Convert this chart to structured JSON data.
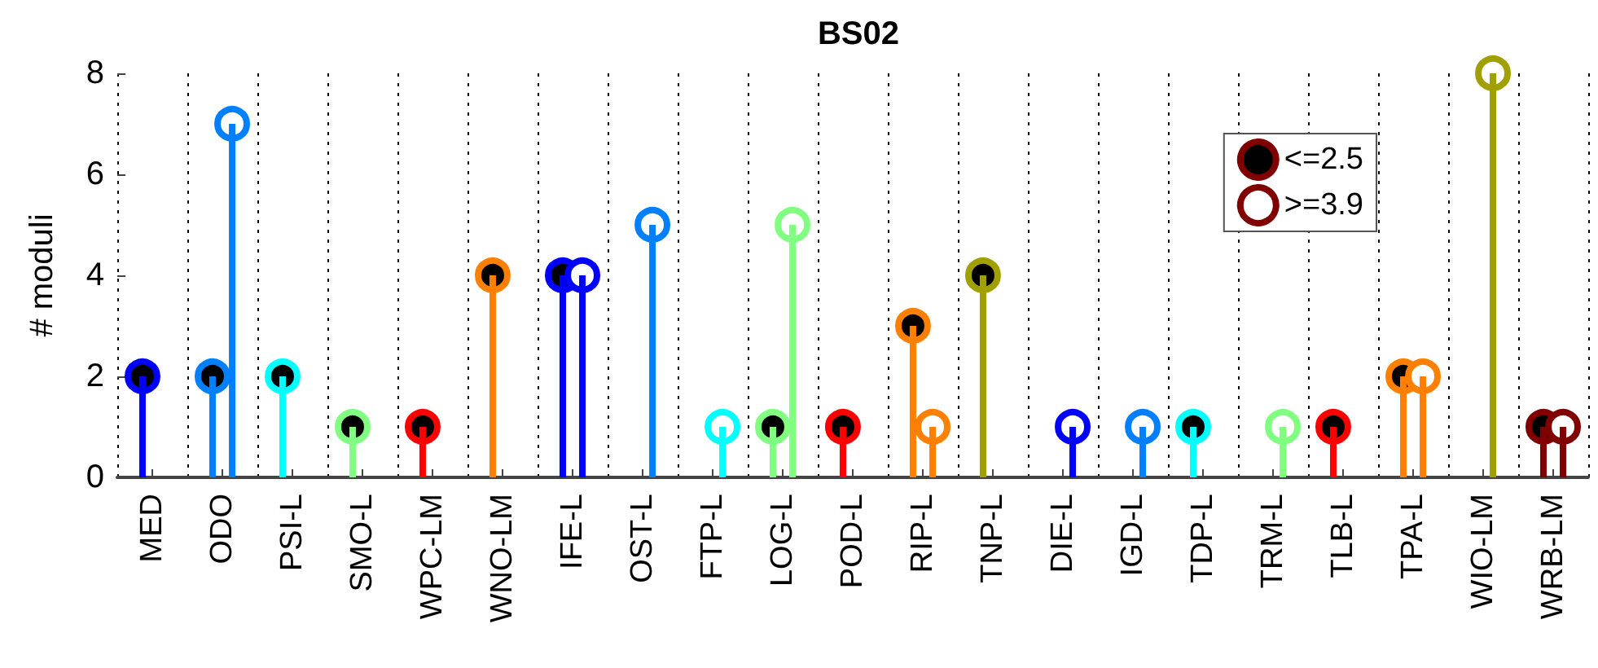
{
  "chart_data": {
    "type": "lollipop",
    "title": "BS02",
    "ylabel": "# moduli",
    "categories": [
      "MED",
      "ODO",
      "PSI-L",
      "SMO-L",
      "WPC-LM",
      "WNO-LM",
      "IFE-L",
      "OST-L",
      "FTP-L",
      "LOG-L",
      "POD-L",
      "RIP-L",
      "TNP-L",
      "DIE-L",
      "IGD-L",
      "TDP-L",
      "TRM-L",
      "TLB-L",
      "TPA-L",
      "WIO-LM",
      "WRB-LM"
    ],
    "series": [
      {
        "name": "<=2.5",
        "color": "#800000",
        "values": [
          2,
          2,
          2,
          1,
          1,
          4,
          4,
          null,
          null,
          1,
          1,
          3,
          4,
          null,
          null,
          1,
          null,
          1,
          2,
          null,
          1
        ],
        "colors": [
          "#0000ff",
          "#0080ff",
          "#00ffff",
          "#80ff80",
          "#ff0000",
          "#ff8000",
          "#0000ff",
          null,
          null,
          "#80ff80",
          "#ff0000",
          "#ff8000",
          "#a0a000",
          null,
          null,
          "#00ffff",
          null,
          "#ff0000",
          "#ff8000",
          null,
          "#800000"
        ]
      },
      {
        "name": ">=3.9",
        "color": "#800000",
        "values": [
          null,
          7,
          null,
          null,
          null,
          null,
          4,
          5,
          1,
          5,
          null,
          1,
          null,
          1,
          1,
          null,
          1,
          null,
          2,
          8,
          1
        ],
        "colors": [
          null,
          "#0080ff",
          null,
          null,
          null,
          null,
          "#0000ff",
          "#0080ff",
          "#00ffff",
          "#80ff80",
          null,
          "#ff8000",
          null,
          "#0000ff",
          "#0080ff",
          null,
          "#80ff80",
          null,
          "#ff8000",
          "#a0a000",
          "#800000"
        ]
      }
    ],
    "ylim": [
      0,
      8
    ],
    "yticks": [
      0,
      2,
      4,
      6,
      8
    ],
    "grid": "x",
    "legend": "top right",
    "marker": "circle"
  }
}
